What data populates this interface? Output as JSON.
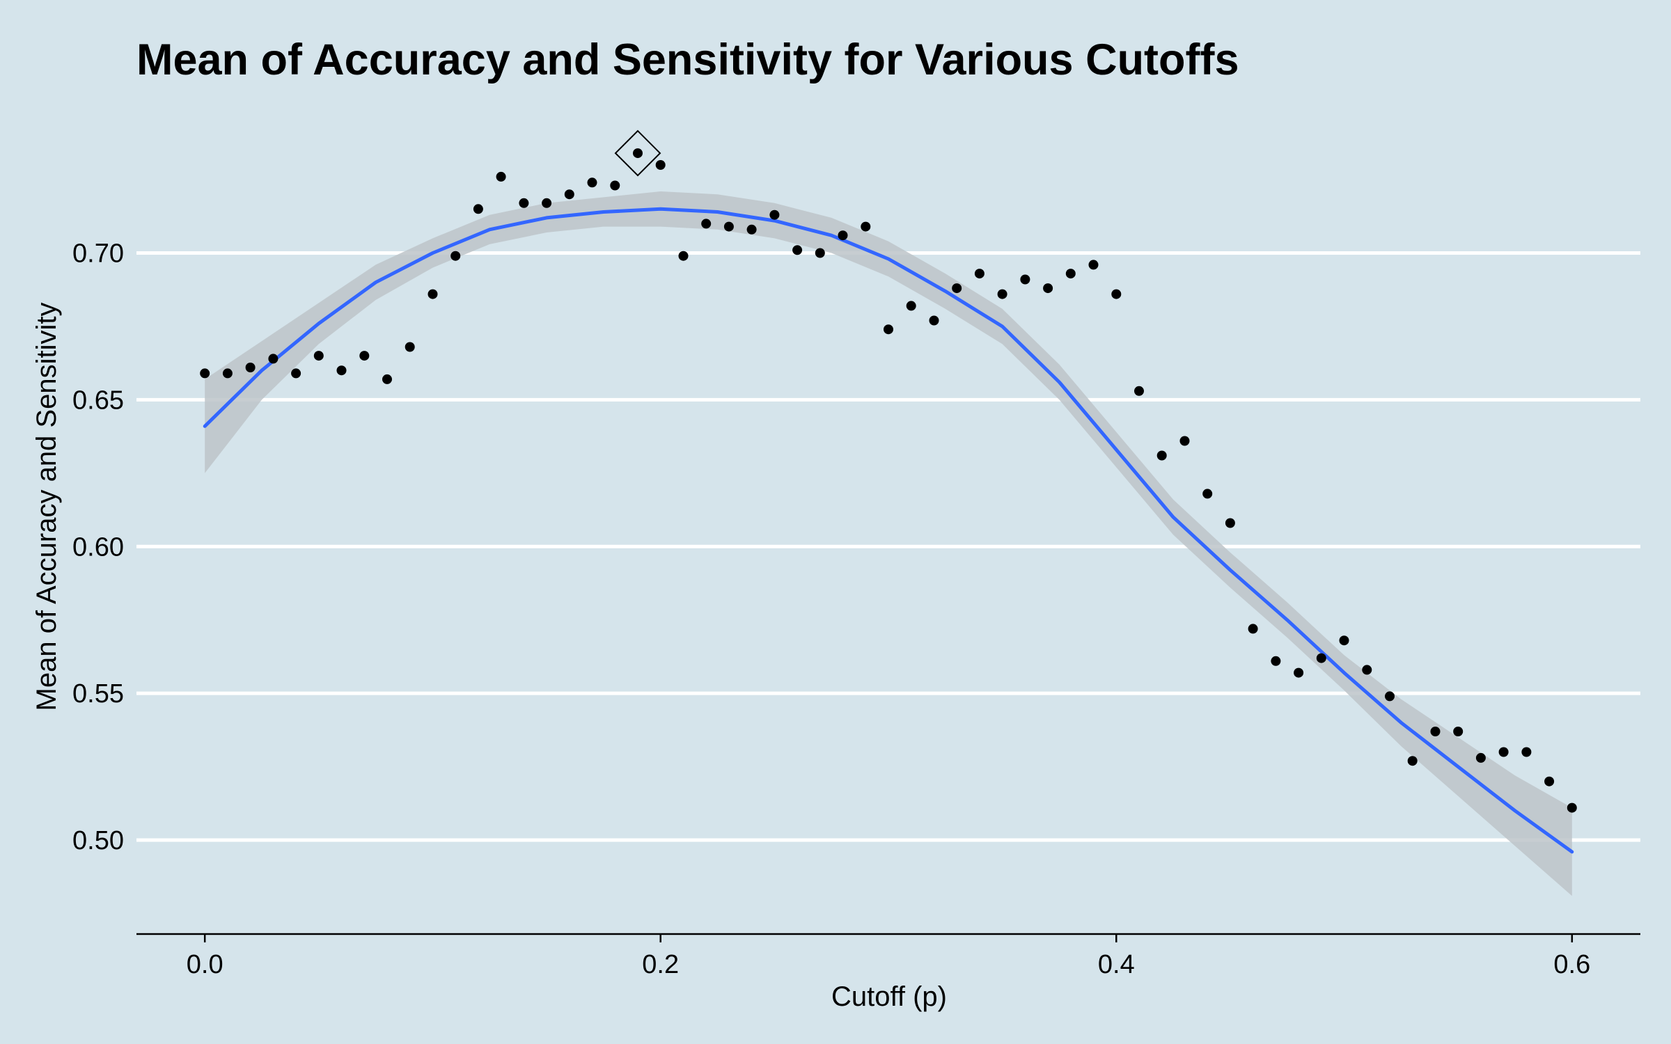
{
  "chart_data": {
    "type": "scatter",
    "title": "Mean of Accuracy and Sensitivity for Various Cutoffs",
    "xlabel": "Cutoff (p)",
    "ylabel": "Mean of Accuracy and Sensitivity",
    "xlim": [
      -0.03,
      0.63
    ],
    "ylim": [
      0.468,
      0.753
    ],
    "x_ticks": [
      0.0,
      0.2,
      0.4,
      0.6
    ],
    "x_tick_labels": [
      "0.0",
      "0.2",
      "0.4",
      "0.6"
    ],
    "y_ticks": [
      0.5,
      0.55,
      0.6,
      0.65,
      0.7
    ],
    "y_tick_labels": [
      "0.50",
      "0.55",
      "0.60",
      "0.65",
      "0.70"
    ],
    "grid": "horizontal major gridlines",
    "colors": {
      "background": "#d5e4eb",
      "gridline": "#ffffff",
      "points": "#000000",
      "smooth_line": "#3366ff",
      "confidence_band": "#bdc4c9"
    },
    "series": [
      {
        "type": "points",
        "x": [
          0.0,
          0.01,
          0.02,
          0.03,
          0.04,
          0.05,
          0.06,
          0.07,
          0.08,
          0.09,
          0.1,
          0.11,
          0.12,
          0.13,
          0.14,
          0.15,
          0.16,
          0.17,
          0.18,
          0.19,
          0.2,
          0.21,
          0.22,
          0.23,
          0.24,
          0.25,
          0.26,
          0.27,
          0.28,
          0.29,
          0.3,
          0.31,
          0.32,
          0.33,
          0.34,
          0.35,
          0.36,
          0.37,
          0.38,
          0.39,
          0.4,
          0.41,
          0.42,
          0.43,
          0.44,
          0.45,
          0.46,
          0.47,
          0.48,
          0.49,
          0.5,
          0.51,
          0.52,
          0.53,
          0.54,
          0.55,
          0.56,
          0.57,
          0.58,
          0.59,
          0.6
        ],
        "y": [
          0.659,
          0.659,
          0.661,
          0.664,
          0.659,
          0.665,
          0.66,
          0.665,
          0.657,
          0.668,
          0.686,
          0.699,
          0.715,
          0.726,
          0.717,
          0.717,
          0.72,
          0.724,
          0.723,
          0.734,
          0.73,
          0.699,
          0.71,
          0.709,
          0.708,
          0.713,
          0.701,
          0.7,
          0.706,
          0.709,
          0.674,
          0.682,
          0.677,
          0.688,
          0.693,
          0.686,
          0.691,
          0.688,
          0.693,
          0.696,
          0.686,
          0.653,
          0.631,
          0.636,
          0.618,
          0.608,
          0.572,
          0.561,
          0.557,
          0.562,
          0.568,
          0.558,
          0.549,
          0.527,
          0.537,
          0.537,
          0.528,
          0.53,
          0.53,
          0.52,
          0.511
        ]
      },
      {
        "type": "smooth",
        "x": [
          0.0,
          0.025,
          0.05,
          0.075,
          0.1,
          0.125,
          0.15,
          0.175,
          0.2,
          0.225,
          0.25,
          0.275,
          0.3,
          0.325,
          0.35,
          0.375,
          0.4,
          0.425,
          0.45,
          0.475,
          0.5,
          0.525,
          0.55,
          0.575,
          0.6
        ],
        "y": [
          0.641,
          0.66,
          0.676,
          0.69,
          0.7,
          0.708,
          0.712,
          0.714,
          0.715,
          0.714,
          0.711,
          0.706,
          0.698,
          0.687,
          0.675,
          0.656,
          0.633,
          0.61,
          0.592,
          0.575,
          0.557,
          0.54,
          0.525,
          0.51,
          0.496
        ],
        "ci_lower": [
          0.625,
          0.65,
          0.669,
          0.684,
          0.695,
          0.703,
          0.707,
          0.709,
          0.709,
          0.708,
          0.705,
          0.7,
          0.692,
          0.681,
          0.669,
          0.65,
          0.627,
          0.604,
          0.586,
          0.569,
          0.551,
          0.532,
          0.515,
          0.498,
          0.481
        ],
        "ci_upper": [
          0.657,
          0.67,
          0.683,
          0.696,
          0.705,
          0.713,
          0.717,
          0.719,
          0.721,
          0.72,
          0.717,
          0.712,
          0.704,
          0.693,
          0.681,
          0.662,
          0.639,
          0.616,
          0.598,
          0.581,
          0.563,
          0.548,
          0.535,
          0.522,
          0.511
        ]
      }
    ],
    "highlight": {
      "marker": "diamond",
      "x": 0.19,
      "y": 0.734
    }
  }
}
